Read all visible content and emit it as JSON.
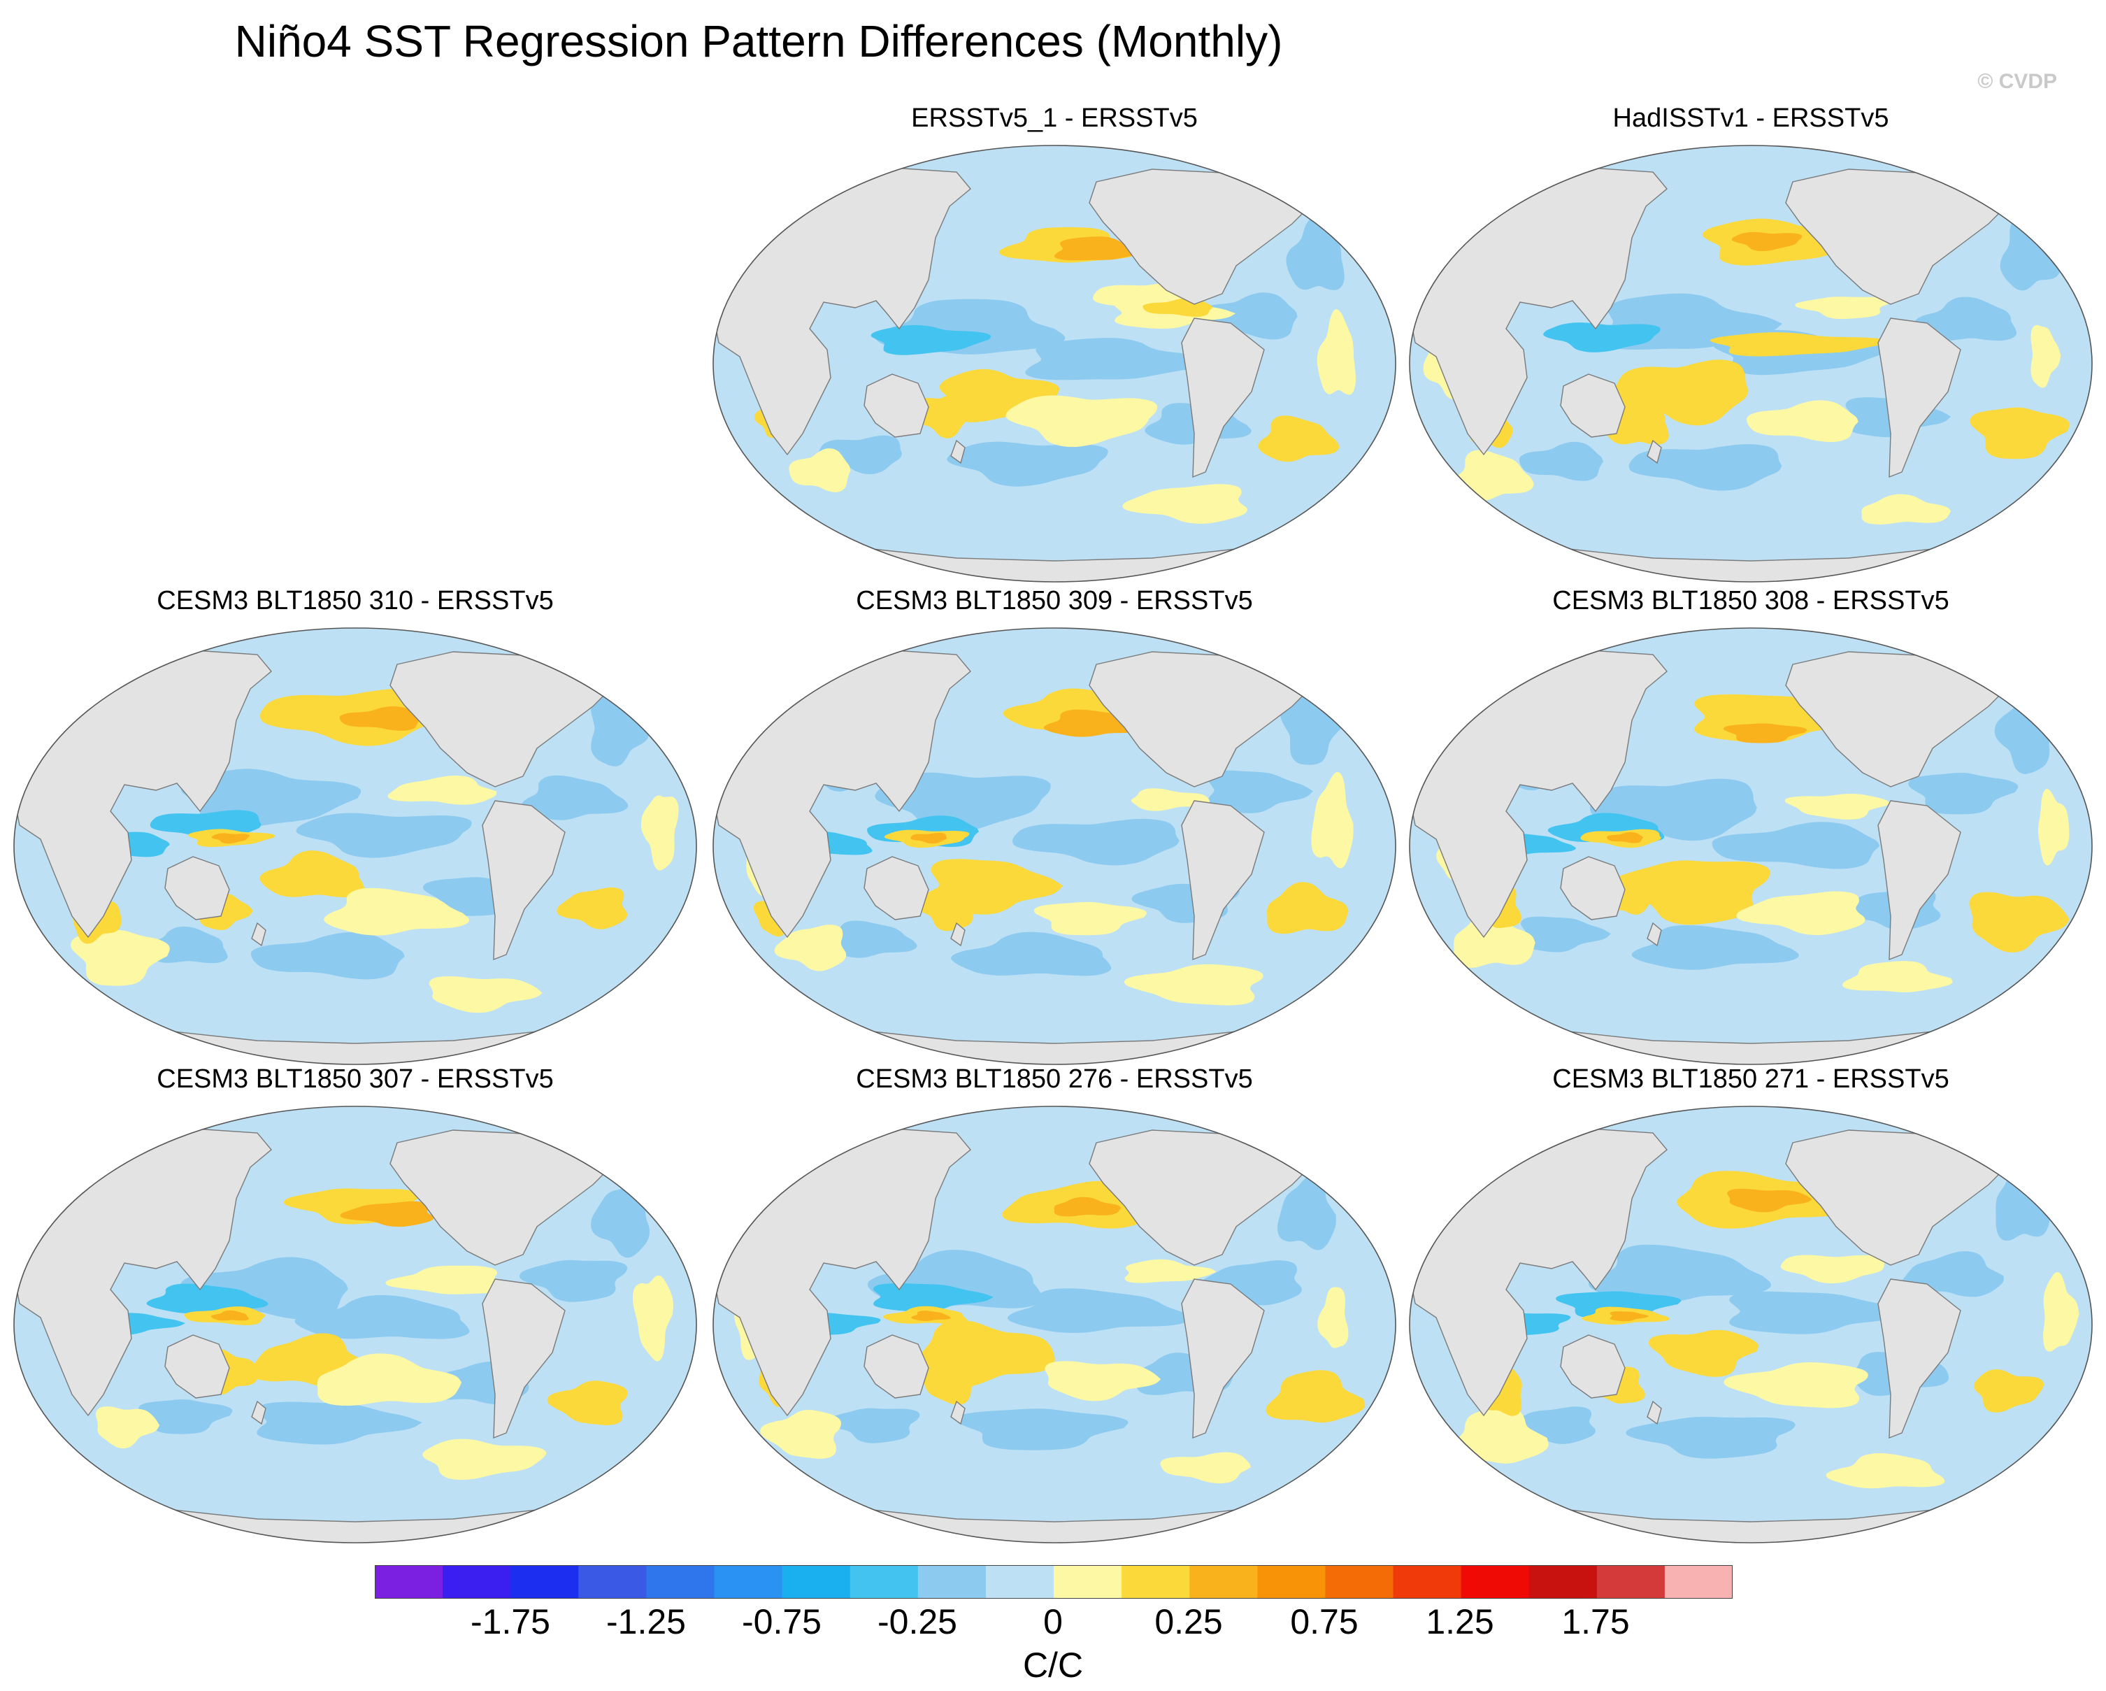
{
  "title": "Niño4 SST Regression Pattern Differences (Monthly)",
  "credit": "© CVDP",
  "panels": [
    {
      "title": "ERSSTv5_1 - ERSSTv5",
      "variant": 0
    },
    {
      "title": "HadISSTv1 - ERSSTv5",
      "variant": 1
    },
    {
      "title": "CESM3 BLT1850 310 - ERSSTv5",
      "variant": 2
    },
    {
      "title": "CESM3 BLT1850 309 - ERSSTv5",
      "variant": 3
    },
    {
      "title": "CESM3 BLT1850 308 - ERSSTv5",
      "variant": 4
    },
    {
      "title": "CESM3 BLT1850 307 - ERSSTv5",
      "variant": 5
    },
    {
      "title": "CESM3 BLT1850 276 - ERSSTv5",
      "variant": 6
    },
    {
      "title": "CESM3 BLT1850 271 - ERSSTv5",
      "variant": 7
    }
  ],
  "colorbar": {
    "units": "C/C",
    "tick_labels": [
      "-1.75",
      "-1.25",
      "-0.75",
      "-0.25",
      "0",
      "0.25",
      "0.75",
      "1.25",
      "1.75"
    ],
    "colors": [
      "#7b1fe0",
      "#3b1ff0",
      "#1c2ef0",
      "#3a5ae6",
      "#2f76ec",
      "#2a92f2",
      "#1aafef",
      "#43c3f0",
      "#8ccaef",
      "#bde0f4",
      "#fdf8a4",
      "#fbd93a",
      "#f9b21c",
      "#f89308",
      "#f46c06",
      "#f13a0a",
      "#f00a06",
      "#c7120f",
      "#d53a3a",
      "#f9b2b2"
    ]
  },
  "map_colors": {
    "land": "#e3e3e3",
    "coast": "#7a7a7a",
    "neg_light": "#bde0f4",
    "neg_mid": "#8ccaef",
    "neg_strong": "#43c3f0",
    "pos_light": "#fdf8a4",
    "pos_mid": "#fbd93a",
    "pos_strong": "#f9b21c"
  }
}
